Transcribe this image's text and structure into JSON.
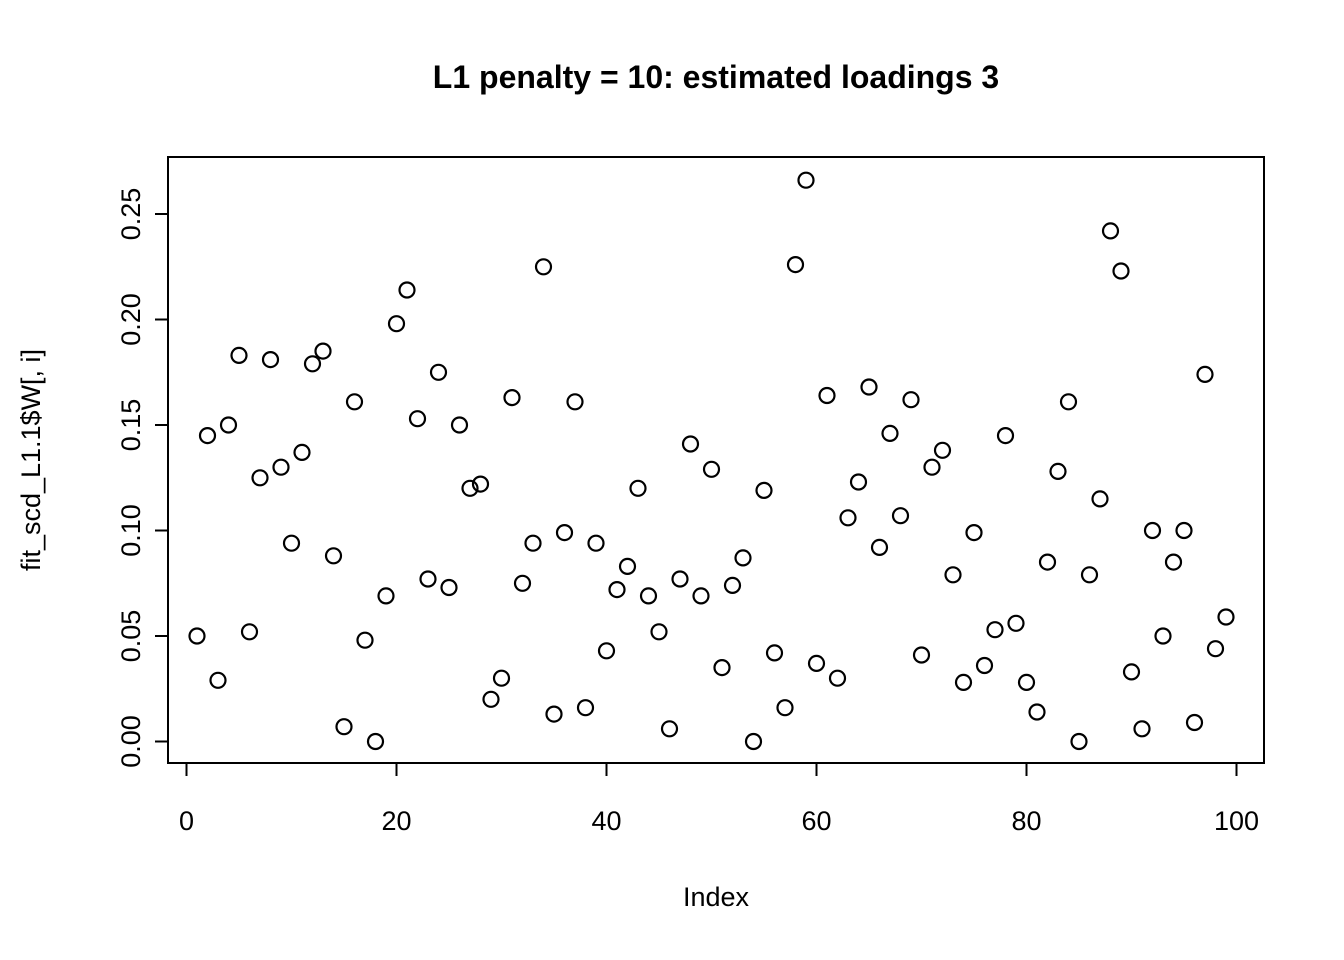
{
  "title": "L1 penalty = 10: estimated loadings 3",
  "chart_data": {
    "type": "scatter",
    "title": "L1 penalty = 10: estimated loadings 3",
    "xlabel": "Index",
    "ylabel": "fit_scd_L1.1$W[, i]",
    "marker": "open-circle",
    "marker_color": "#000000",
    "background_color": "#ffffff",
    "grid": false,
    "legend": "none",
    "xlim": [
      -1.8,
      102.7
    ],
    "ylim": [
      -0.011,
      0.277
    ],
    "x_tick_values": [
      0,
      20,
      40,
      60,
      80,
      100
    ],
    "x_tick_labels": [
      "0",
      "20",
      "40",
      "60",
      "80",
      "100"
    ],
    "y_tick_values": [
      0.0,
      0.05,
      0.1,
      0.15,
      0.2,
      0.25
    ],
    "y_tick_labels": [
      "0.00",
      "0.05",
      "0.10",
      "0.15",
      "0.20",
      "0.25"
    ],
    "x": [
      1,
      2,
      3,
      4,
      5,
      6,
      7,
      8,
      9,
      10,
      11,
      12,
      13,
      14,
      15,
      16,
      17,
      18,
      19,
      20,
      21,
      22,
      23,
      24,
      25,
      26,
      27,
      28,
      29,
      30,
      31,
      32,
      33,
      34,
      35,
      36,
      37,
      38,
      39,
      40,
      41,
      42,
      43,
      44,
      45,
      46,
      47,
      48,
      49,
      50,
      51,
      52,
      53,
      54,
      55,
      56,
      57,
      58,
      59,
      60,
      61,
      62,
      63,
      64,
      65,
      66,
      67,
      68,
      69,
      70,
      71,
      72,
      73,
      74,
      75,
      76,
      77,
      78,
      79,
      80,
      81,
      82,
      83,
      84,
      85,
      86,
      87,
      88,
      89,
      90,
      91,
      92,
      93,
      94,
      95,
      96,
      97,
      98,
      99
    ],
    "y": [
      0.05,
      0.145,
      0.029,
      0.15,
      0.183,
      0.052,
      0.125,
      0.181,
      0.13,
      0.094,
      0.137,
      0.179,
      0.185,
      0.088,
      0.007,
      0.161,
      0.048,
      0.0,
      0.069,
      0.198,
      0.214,
      0.153,
      0.077,
      0.175,
      0.073,
      0.15,
      0.12,
      0.122,
      0.02,
      0.03,
      0.163,
      0.075,
      0.094,
      0.225,
      0.013,
      0.099,
      0.161,
      0.016,
      0.094,
      0.043,
      0.072,
      0.083,
      0.12,
      0.069,
      0.052,
      0.006,
      0.077,
      0.141,
      0.069,
      0.129,
      0.035,
      0.074,
      0.087,
      0.0,
      0.119,
      0.042,
      0.016,
      0.226,
      0.266,
      0.037,
      0.164,
      0.03,
      0.106,
      0.123,
      0.168,
      0.092,
      0.146,
      0.107,
      0.162,
      0.041,
      0.13,
      0.138,
      0.079,
      0.028,
      0.099,
      0.036,
      0.053,
      0.145,
      0.056,
      0.028,
      0.014,
      0.085,
      0.128,
      0.161,
      0.0,
      0.079,
      0.115,
      0.242,
      0.223,
      0.033,
      0.006,
      0.1,
      0.05,
      0.085,
      0.1,
      0.009,
      0.174,
      0.044,
      0.059
    ]
  }
}
